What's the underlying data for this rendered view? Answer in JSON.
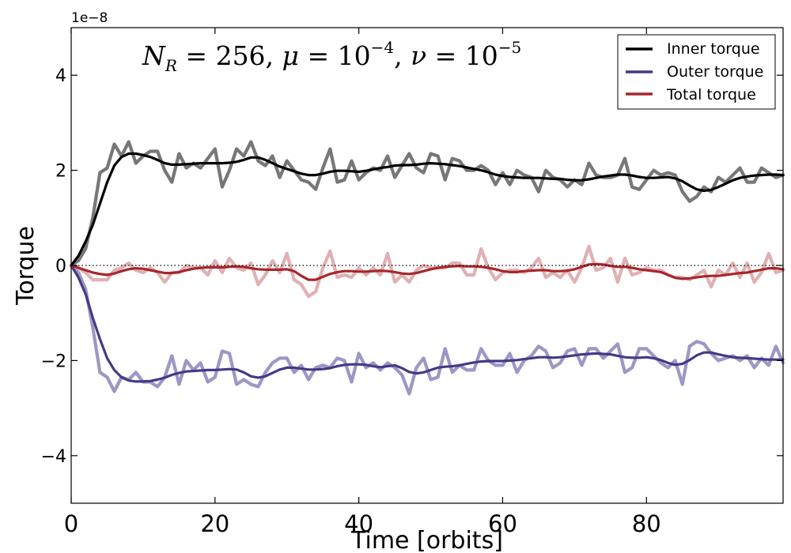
{
  "chart_data": {
    "type": "line",
    "title": "",
    "xlabel": "Time [orbits]",
    "ylabel": "Torque",
    "xlim": [
      0,
      99
    ],
    "ylim": [
      -5,
      5
    ],
    "x_ticks": [
      0,
      20,
      40,
      60,
      80
    ],
    "x_tick_labels": [
      "0",
      "20",
      "40",
      "60",
      "80"
    ],
    "y_ticks": [
      -4,
      -2,
      0,
      2,
      4
    ],
    "y_tick_labels": [
      "−4",
      "−2",
      "0",
      "2",
      "4"
    ],
    "y_offset_label": "1e−8",
    "y_scale": 1e-08,
    "zero_line": true,
    "grid": false,
    "legend_position": "top-right",
    "annotation": {
      "nr_sym": "N",
      "nr_sub": "R",
      "nr_val": " = 256,",
      "mu_sym": " μ",
      "mu_val": " = 10",
      "mu_exp": "−4",
      "nu_sep": ",",
      "nu_sym": " ν",
      "nu_val": " = 10",
      "nu_exp": "−5"
    },
    "x": [
      0,
      1,
      2,
      3,
      4,
      5,
      6,
      7,
      8,
      9,
      10,
      11,
      12,
      13,
      14,
      15,
      16,
      17,
      18,
      19,
      20,
      21,
      22,
      23,
      24,
      25,
      26,
      27,
      28,
      29,
      30,
      31,
      32,
      33,
      34,
      35,
      36,
      37,
      38,
      39,
      40,
      41,
      42,
      43,
      44,
      45,
      46,
      47,
      48,
      49,
      50,
      51,
      52,
      53,
      54,
      55,
      56,
      57,
      58,
      59,
      60,
      61,
      62,
      63,
      64,
      65,
      66,
      67,
      68,
      69,
      70,
      71,
      72,
      73,
      74,
      75,
      76,
      77,
      78,
      79,
      80,
      81,
      82,
      83,
      84,
      85,
      86,
      87,
      88,
      89,
      90,
      91,
      92,
      93,
      94,
      95,
      96,
      97,
      98,
      99
    ],
    "series": [
      {
        "name": "Inner torque",
        "role": "smoothed",
        "color": "#000000",
        "values": [
          0,
          0.2,
          0.5,
          0.85,
          1.3,
          1.75,
          2.1,
          2.28,
          2.35,
          2.35,
          2.32,
          2.28,
          2.22,
          2.15,
          2.12,
          2.12,
          2.13,
          2.14,
          2.15,
          2.15,
          2.15,
          2.15,
          2.16,
          2.18,
          2.22,
          2.27,
          2.27,
          2.22,
          2.15,
          2.08,
          2.03,
          1.98,
          1.93,
          1.9,
          1.9,
          1.93,
          1.97,
          1.99,
          1.99,
          1.98,
          1.97,
          1.99,
          2.02,
          2.05,
          2.07,
          2.1,
          2.11,
          2.11,
          2.12,
          2.14,
          2.15,
          2.14,
          2.13,
          2.11,
          2.09,
          2.06,
          2.03,
          2.0,
          1.96,
          1.91,
          1.88,
          1.86,
          1.85,
          1.84,
          1.84,
          1.84,
          1.83,
          1.82,
          1.82,
          1.8,
          1.79,
          1.79,
          1.81,
          1.84,
          1.87,
          1.89,
          1.91,
          1.91,
          1.89,
          1.86,
          1.84,
          1.84,
          1.85,
          1.86,
          1.83,
          1.77,
          1.68,
          1.6,
          1.57,
          1.59,
          1.65,
          1.72,
          1.79,
          1.84,
          1.87,
          1.89,
          1.9,
          1.91,
          1.91,
          1.9
        ]
      },
      {
        "name": "Inner torque",
        "role": "raw",
        "color": "#777777",
        "values": [
          0,
          0.1,
          0.35,
          1.0,
          1.95,
          2.05,
          2.55,
          2.3,
          2.6,
          2.15,
          2.3,
          2.4,
          2.4,
          2.0,
          1.75,
          2.35,
          2.05,
          2.15,
          2.05,
          2.25,
          2.45,
          1.65,
          2.0,
          2.45,
          2.3,
          2.6,
          2.2,
          2.1,
          2.3,
          1.85,
          2.2,
          2.0,
          1.8,
          1.75,
          1.6,
          2.05,
          2.45,
          1.75,
          1.8,
          2.2,
          1.8,
          1.95,
          2.05,
          2.0,
          2.3,
          1.85,
          2.1,
          2.35,
          2.05,
          1.95,
          2.35,
          2.3,
          1.8,
          2.25,
          2.2,
          2.0,
          2.0,
          2.1,
          2.0,
          1.7,
          1.95,
          1.7,
          2.0,
          1.9,
          1.85,
          1.55,
          2.0,
          1.85,
          1.8,
          1.65,
          1.8,
          1.7,
          2.15,
          1.9,
          1.85,
          1.85,
          1.9,
          2.25,
          1.65,
          1.6,
          1.8,
          2.0,
          1.9,
          1.95,
          1.9,
          1.55,
          1.35,
          1.45,
          1.65,
          1.55,
          1.85,
          1.75,
          1.9,
          2.05,
          1.75,
          1.75,
          2.05,
          1.95,
          1.85,
          1.9
        ]
      },
      {
        "name": "Outer torque",
        "role": "smoothed",
        "color": "#443a86",
        "values": [
          0,
          -0.25,
          -0.6,
          -1.1,
          -1.55,
          -1.95,
          -2.2,
          -2.35,
          -2.42,
          -2.44,
          -2.44,
          -2.43,
          -2.4,
          -2.36,
          -2.3,
          -2.26,
          -2.23,
          -2.22,
          -2.21,
          -2.2,
          -2.2,
          -2.19,
          -2.18,
          -2.19,
          -2.25,
          -2.33,
          -2.36,
          -2.33,
          -2.26,
          -2.19,
          -2.15,
          -2.15,
          -2.17,
          -2.19,
          -2.19,
          -2.18,
          -2.16,
          -2.12,
          -2.09,
          -2.08,
          -2.08,
          -2.09,
          -2.12,
          -2.14,
          -2.12,
          -2.1,
          -2.16,
          -2.24,
          -2.27,
          -2.25,
          -2.2,
          -2.15,
          -2.13,
          -2.12,
          -2.1,
          -2.07,
          -2.04,
          -2.02,
          -2.01,
          -2.01,
          -2.01,
          -2.0,
          -1.99,
          -1.97,
          -1.95,
          -1.93,
          -1.93,
          -1.94,
          -1.93,
          -1.91,
          -1.89,
          -1.87,
          -1.86,
          -1.85,
          -1.86,
          -1.87,
          -1.9,
          -1.93,
          -1.94,
          -1.94,
          -1.93,
          -1.95,
          -1.99,
          -2.05,
          -2.09,
          -2.07,
          -1.99,
          -1.89,
          -1.83,
          -1.83,
          -1.87,
          -1.9,
          -1.93,
          -1.94,
          -1.95,
          -1.96,
          -1.97,
          -1.98,
          -1.98,
          -1.98
        ]
      },
      {
        "name": "Outer torque",
        "role": "raw",
        "color": "#9c98c4",
        "values": [
          0,
          -0.15,
          -0.5,
          -1.3,
          -2.25,
          -2.35,
          -2.65,
          -2.35,
          -2.4,
          -2.25,
          -2.45,
          -2.45,
          -2.55,
          -2.35,
          -1.9,
          -2.5,
          -2.0,
          -2.2,
          -2.05,
          -2.45,
          -2.35,
          -1.8,
          -1.85,
          -2.5,
          -2.4,
          -2.5,
          -2.55,
          -2.25,
          -2.05,
          -1.95,
          -1.95,
          -2.25,
          -2.1,
          -2.4,
          -2.15,
          -2.1,
          -2.15,
          -1.95,
          -2.0,
          -2.45,
          -1.85,
          -2.15,
          -2.05,
          -2.2,
          -2.05,
          -2.15,
          -2.3,
          -2.7,
          -2.15,
          -1.95,
          -2.4,
          -2.35,
          -1.75,
          -2.25,
          -2.1,
          -2.2,
          -2.2,
          -1.75,
          -2.0,
          -2.1,
          -2.1,
          -1.85,
          -2.25,
          -2.0,
          -1.9,
          -1.7,
          -1.8,
          -2.15,
          -2.05,
          -1.8,
          -1.75,
          -2.1,
          -1.75,
          -1.75,
          -1.95,
          -1.8,
          -1.65,
          -2.25,
          -2.15,
          -1.75,
          -1.75,
          -1.9,
          -2.05,
          -2.15,
          -2.0,
          -2.5,
          -1.7,
          -1.6,
          -1.65,
          -1.85,
          -2.0,
          -1.95,
          -1.9,
          -2.0,
          -1.9,
          -2.15,
          -1.95,
          -2.1,
          -1.7,
          -2.05
        ]
      },
      {
        "name": "Total torque",
        "role": "smoothed",
        "color": "#a8262b",
        "values": [
          0,
          -0.05,
          -0.1,
          -0.15,
          -0.18,
          -0.2,
          -0.17,
          -0.12,
          -0.08,
          -0.06,
          -0.07,
          -0.1,
          -0.13,
          -0.16,
          -0.16,
          -0.14,
          -0.1,
          -0.07,
          -0.05,
          -0.04,
          -0.04,
          -0.04,
          -0.03,
          -0.02,
          -0.03,
          -0.06,
          -0.08,
          -0.09,
          -0.09,
          -0.09,
          -0.08,
          -0.12,
          -0.22,
          -0.3,
          -0.3,
          -0.24,
          -0.18,
          -0.14,
          -0.12,
          -0.12,
          -0.13,
          -0.13,
          -0.12,
          -0.11,
          -0.12,
          -0.14,
          -0.17,
          -0.18,
          -0.16,
          -0.12,
          -0.08,
          -0.05,
          -0.03,
          -0.02,
          -0.01,
          -0.02,
          -0.02,
          -0.03,
          -0.05,
          -0.08,
          -0.12,
          -0.14,
          -0.14,
          -0.12,
          -0.11,
          -0.1,
          -0.1,
          -0.12,
          -0.12,
          -0.11,
          -0.08,
          -0.03,
          0.02,
          0.03,
          0.02,
          -0.01,
          -0.03,
          -0.03,
          -0.05,
          -0.08,
          -0.1,
          -0.12,
          -0.14,
          -0.2,
          -0.26,
          -0.28,
          -0.27,
          -0.25,
          -0.23,
          -0.22,
          -0.22,
          -0.2,
          -0.18,
          -0.16,
          -0.15,
          -0.12,
          -0.09,
          -0.06,
          -0.06,
          -0.08
        ]
      },
      {
        "name": "Total torque",
        "role": "raw",
        "color": "#e0b0b2",
        "values": [
          0,
          -0.05,
          -0.15,
          -0.3,
          -0.3,
          -0.3,
          -0.1,
          -0.05,
          0.05,
          -0.1,
          -0.15,
          -0.05,
          -0.15,
          -0.35,
          -0.15,
          -0.15,
          0,
          -0.05,
          -0.05,
          -0.2,
          0.1,
          -0.15,
          0.15,
          -0.05,
          -0.1,
          0.05,
          -0.4,
          -0.2,
          0.1,
          -0.15,
          0.25,
          -0.3,
          -0.4,
          -0.65,
          -0.55,
          -0.05,
          0.3,
          -0.25,
          -0.2,
          -0.25,
          -0.05,
          -0.2,
          -0.05,
          -0.2,
          0.25,
          -0.35,
          -0.2,
          -0.35,
          -0.1,
          0,
          -0.05,
          -0.05,
          -0.05,
          0.05,
          0.05,
          -0.2,
          -0.2,
          0.35,
          -0.05,
          -0.3,
          -0.15,
          -0.1,
          -0.1,
          -0.15,
          -0.05,
          0.15,
          -0.25,
          -0.15,
          -0.25,
          -0.1,
          -0.35,
          -0.05,
          0.4,
          -0.1,
          -0.05,
          0.15,
          -0.35,
          0.15,
          -0.2,
          -0.15,
          -0.05,
          -0.1,
          -0.1,
          -0.2,
          -0.25,
          -0.25,
          -0.3,
          -0.2,
          -0.1,
          -0.45,
          -0.1,
          -0.2,
          0.05,
          -0.25,
          0.05,
          -0.35,
          -0.15,
          0.25,
          -0.15,
          -0.1
        ]
      }
    ],
    "legend": [
      "Inner torque",
      "Outer torque",
      "Total torque"
    ],
    "legend_colors": [
      "#000000",
      "#443a86",
      "#a8262b"
    ]
  }
}
